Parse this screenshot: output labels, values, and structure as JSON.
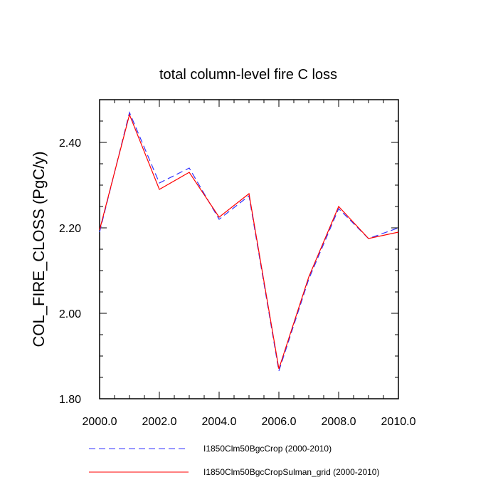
{
  "chart_data": {
    "type": "line",
    "title": "total column-level fire C loss",
    "xlabel": "",
    "ylabel": "COL_FIRE_CLOSS  (PgC/y)",
    "xlim": [
      2000.0,
      2010.0
    ],
    "ylim": [
      1.8,
      2.5
    ],
    "x_ticks": [
      2000.0,
      2002.0,
      2004.0,
      2006.0,
      2008.0,
      2010.0
    ],
    "x_tick_labels": [
      "2000.0",
      "2002.0",
      "2004.0",
      "2006.0",
      "2008.0",
      "2010.0"
    ],
    "y_ticks": [
      1.8,
      2.0,
      2.2,
      2.4
    ],
    "y_tick_labels": [
      "1.80",
      "2.00",
      "2.20",
      "2.40"
    ],
    "grid": false,
    "legend_position": "bottom",
    "x": [
      2000,
      2001,
      2002,
      2003,
      2004,
      2005,
      2006,
      2007,
      2008,
      2009,
      2010
    ],
    "series": [
      {
        "name": "I1850Clm50BgcCrop (2000-2010)",
        "color": "#3333ff",
        "dash": "dashed",
        "values": [
          2.19,
          2.47,
          2.305,
          2.34,
          2.22,
          2.275,
          1.865,
          2.08,
          2.245,
          2.175,
          2.2
        ]
      },
      {
        "name": "I1850Clm50BgcCropSulman_grid (2000-2010)",
        "color": "#ff0000",
        "dash": "solid",
        "values": [
          2.195,
          2.465,
          2.29,
          2.33,
          2.225,
          2.28,
          1.87,
          2.085,
          2.25,
          2.175,
          2.19
        ]
      }
    ]
  }
}
